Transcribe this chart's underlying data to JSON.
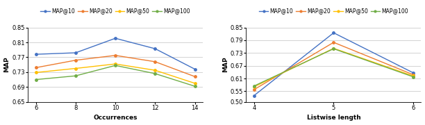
{
  "left_chart": {
    "xlabel": "Occurrences",
    "ylabel": "MAP",
    "x": [
      6,
      8,
      10,
      12,
      14
    ],
    "series": {
      "MAP@10": [
        0.778,
        0.782,
        0.821,
        0.793,
        0.738
      ],
      "MAP@20": [
        0.742,
        0.762,
        0.775,
        0.758,
        0.718
      ],
      "MAP@50": [
        0.729,
        0.74,
        0.752,
        0.735,
        0.7
      ],
      "MAP@100": [
        0.71,
        0.72,
        0.748,
        0.726,
        0.692
      ]
    },
    "colors": {
      "MAP@10": "#4472C4",
      "MAP@20": "#ED7D31",
      "MAP@50": "#FFC000",
      "MAP@100": "#70AD47"
    },
    "ylim": [
      0.65,
      0.85
    ],
    "yticks": [
      0.65,
      0.69,
      0.73,
      0.77,
      0.81,
      0.85
    ]
  },
  "right_chart": {
    "xlabel": "Listwise length",
    "ylabel": "MAP",
    "x": [
      4,
      5,
      6
    ],
    "series": {
      "MAP@10": [
        0.53,
        0.825,
        0.637
      ],
      "MAP@20": [
        0.558,
        0.78,
        0.628
      ],
      "MAP@50": [
        0.571,
        0.752,
        0.622
      ],
      "MAP@100": [
        0.575,
        0.75,
        0.618
      ]
    },
    "colors": {
      "MAP@10": "#4472C4",
      "MAP@20": "#ED7D31",
      "MAP@50": "#FFC000",
      "MAP@100": "#70AD47"
    },
    "ylim": [
      0.5,
      0.85
    ],
    "yticks": [
      0.5,
      0.55,
      0.61,
      0.67,
      0.73,
      0.79,
      0.85
    ]
  },
  "legend_labels": [
    "MAP@10",
    "MAP@20",
    "MAP@50",
    "MAP@100"
  ]
}
